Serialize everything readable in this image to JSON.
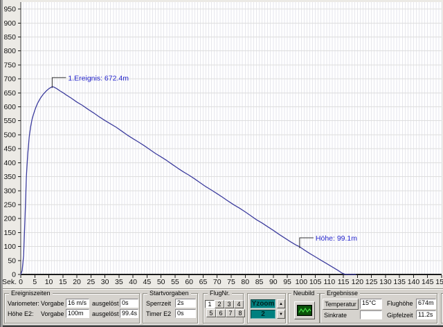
{
  "chart_data": {
    "type": "line",
    "title": "",
    "xlabel": "Sek.",
    "ylabel": "",
    "x_min": 0,
    "x_max": 150,
    "x_tick_step": 5,
    "x_grid_step": 1,
    "y_min": 0,
    "y_max": 975,
    "y_tick_step": 50,
    "grid": true,
    "line_color": "#3b3b9d",
    "grid_v_color": "#e6e6ec",
    "grid_h_color": "#dddddd",
    "axis_color": "#1a1a1a",
    "annotation_color": "#2323cc",
    "series": [
      {
        "name": "Höhe",
        "points": [
          [
            0,
            0
          ],
          [
            0.5,
            14
          ],
          [
            1,
            67
          ],
          [
            1.5,
            200
          ],
          [
            2,
            350
          ],
          [
            2.5,
            432
          ],
          [
            3,
            492
          ],
          [
            3.5,
            528
          ],
          [
            4,
            554
          ],
          [
            4.5,
            572
          ],
          [
            5,
            588
          ],
          [
            5.5,
            601
          ],
          [
            6,
            613
          ],
          [
            7,
            631
          ],
          [
            8,
            645
          ],
          [
            9,
            656
          ],
          [
            10,
            665
          ],
          [
            11,
            671
          ],
          [
            11.2,
            672.4
          ],
          [
            12,
            670
          ],
          [
            13,
            664
          ],
          [
            14,
            657
          ],
          [
            15,
            651
          ],
          [
            16,
            644
          ],
          [
            18,
            631
          ],
          [
            20,
            617
          ],
          [
            22,
            605
          ],
          [
            24,
            591
          ],
          [
            26,
            578
          ],
          [
            28,
            564
          ],
          [
            30,
            551
          ],
          [
            32,
            539
          ],
          [
            34,
            527
          ],
          [
            36,
            513
          ],
          [
            38,
            499
          ],
          [
            40,
            486
          ],
          [
            42,
            474
          ],
          [
            44,
            461
          ],
          [
            46,
            447
          ],
          [
            48,
            433
          ],
          [
            50,
            421
          ],
          [
            52,
            408
          ],
          [
            54,
            394
          ],
          [
            56,
            380
          ],
          [
            58,
            367
          ],
          [
            60,
            355
          ],
          [
            62,
            342
          ],
          [
            64,
            328
          ],
          [
            66,
            314
          ],
          [
            68,
            302
          ],
          [
            70,
            289
          ],
          [
            72,
            276
          ],
          [
            74,
            262
          ],
          [
            76,
            249
          ],
          [
            78,
            237
          ],
          [
            80,
            224
          ],
          [
            82,
            210
          ],
          [
            84,
            196
          ],
          [
            86,
            184
          ],
          [
            88,
            171
          ],
          [
            90,
            158
          ],
          [
            92,
            144
          ],
          [
            94,
            131
          ],
          [
            96,
            118
          ],
          [
            98,
            106
          ],
          [
            99.4,
            99.1
          ],
          [
            101,
            88
          ],
          [
            103,
            75
          ],
          [
            105,
            63
          ],
          [
            107,
            51
          ],
          [
            109,
            39
          ],
          [
            111,
            27
          ],
          [
            113,
            15
          ],
          [
            114.5,
            5
          ],
          [
            115.5,
            1
          ],
          [
            116.5,
            0
          ],
          [
            119.5,
            0
          ]
        ]
      }
    ],
    "annotations": [
      {
        "label": "1.Ereignis: 672.4m",
        "t": 11.2,
        "alt": 672.4
      },
      {
        "label": "Höhe: 99.1m",
        "t": 99.4,
        "alt": 99.1
      }
    ]
  },
  "panels": {
    "ereigniszeiten": {
      "title": "Ereigniszeiten",
      "row1": {
        "name": "Variometer:",
        "mode": "Vorgabe",
        "value": "16 m/s",
        "trigger_label": "ausgelöst",
        "trigger_value": "0s"
      },
      "row2": {
        "name": "Höhe E2:",
        "mode": "Vorgabe",
        "value": "100m",
        "trigger_label": "ausgelöst",
        "trigger_value": "99.4s"
      }
    },
    "startvorgaben": {
      "title": "Startvorgaben",
      "row1": {
        "label": "Sperrzeit",
        "value": "2s"
      },
      "row2": {
        "label": "Timer E2",
        "value": "0s"
      }
    },
    "flugnr": {
      "title": "FlugNr.",
      "buttons": [
        "1",
        "2",
        "3",
        "4",
        "5",
        "6",
        "7",
        "8"
      ],
      "active": "1"
    },
    "yzoom": {
      "label": "Yzoom",
      "value": "2",
      "bg": "#00807f"
    },
    "neubild": {
      "title": "Neubild"
    },
    "ergebnisse": {
      "title": "Ergebnisse",
      "temperatur": {
        "button": "Temperatur",
        "value": "15°C"
      },
      "sinkrate": {
        "label": "Sinkrate",
        "value": ""
      },
      "flughoehe": {
        "label": "Flughöhe",
        "value": "674m"
      },
      "gipfelzeit": {
        "label": "Gipfelzeit",
        "value": "11.2s"
      }
    }
  }
}
